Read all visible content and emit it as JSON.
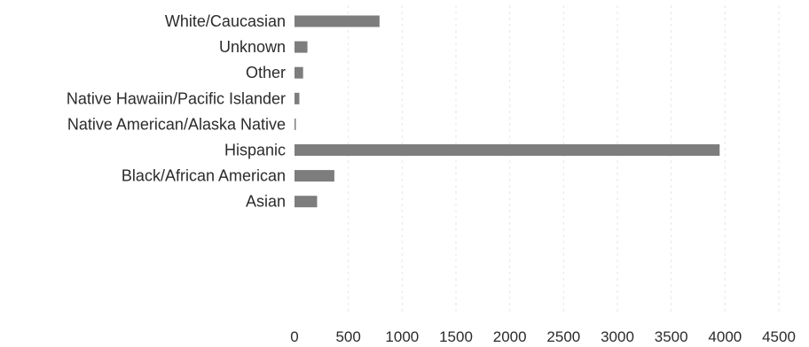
{
  "chart_data": {
    "type": "bar",
    "orientation": "horizontal",
    "categories": [
      "White/Caucasian",
      "Unknown",
      "Other",
      "Native Hawaiin/Pacific Islander",
      "Native American/Alaska Native",
      "Hispanic",
      "Black/African American",
      "Asian"
    ],
    "values": [
      790,
      120,
      80,
      45,
      10,
      3950,
      370,
      210
    ],
    "xlim": [
      0,
      4500
    ],
    "xticks": [
      0,
      500,
      1000,
      1500,
      2000,
      2500,
      3000,
      3500,
      4000,
      4500
    ],
    "title": "",
    "xlabel": "",
    "ylabel": "",
    "grid": "vertical",
    "legend": "none",
    "bar_color": "#7d7d7d",
    "grid_color": "#e6e6e6",
    "text_color": "#2b2b2b"
  }
}
